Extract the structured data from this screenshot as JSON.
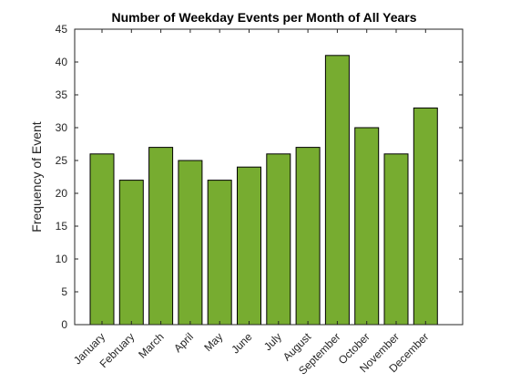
{
  "chart_data": {
    "type": "bar",
    "title": "Number of Weekday Events per Month of All Years",
    "xlabel": "",
    "ylabel": "Frequency of Event",
    "categories": [
      "January",
      "February",
      "March",
      "April",
      "May",
      "June",
      "July",
      "August",
      "September",
      "October",
      "November",
      "December"
    ],
    "values": [
      26,
      22,
      27,
      25,
      22,
      24,
      26,
      27,
      41,
      30,
      26,
      33
    ],
    "ylim": [
      0,
      45
    ],
    "yticks": [
      "0",
      "5",
      "10",
      "15",
      "20",
      "25",
      "30",
      "35",
      "40",
      "45"
    ],
    "grid": false,
    "bar_color": "#77ac30"
  }
}
